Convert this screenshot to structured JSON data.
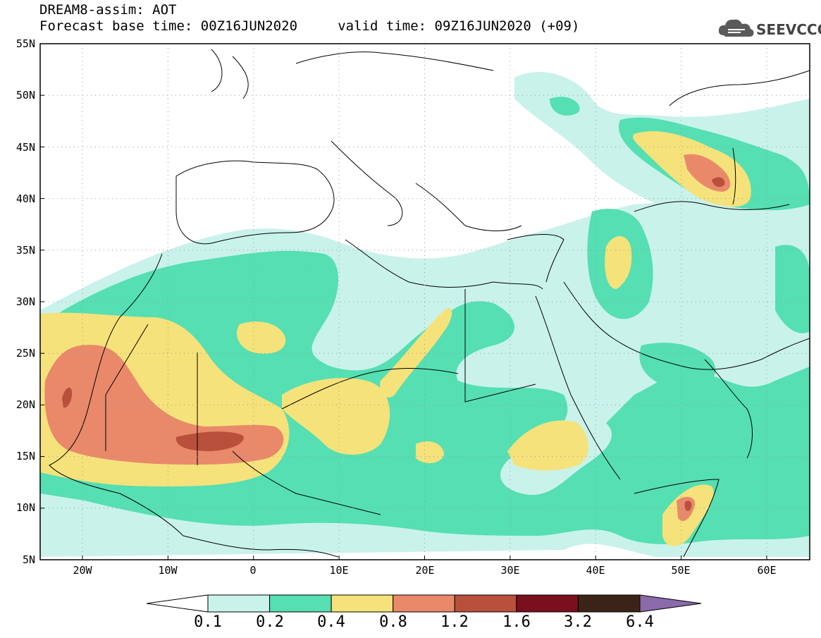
{
  "header": {
    "title": "DREAM8-assim: AOT",
    "subtitle": "Forecast base time: 00Z16JUN2020     valid time: 09Z16JUN2020 (+09)"
  },
  "logo": {
    "text": "SEEVCCC"
  },
  "map": {
    "lat_labels": [
      "55N",
      "50N",
      "45N",
      "40N",
      "35N",
      "30N",
      "25N",
      "20N",
      "15N",
      "10N",
      "5N"
    ],
    "lon_labels": [
      "20W",
      "10W",
      "0",
      "10E",
      "20E",
      "30E",
      "40E",
      "50E",
      "60E"
    ]
  },
  "colorbar": {
    "labels": [
      "0.1",
      "0.2",
      "0.4",
      "0.8",
      "1.2",
      "1.6",
      "3.2",
      "6.4"
    ],
    "colors": [
      "#c9f2eb",
      "#55dfb3",
      "#f6e27a",
      "#e9896a",
      "#b8503c",
      "#7a0f1e",
      "#3b2417",
      "#8a6aab"
    ]
  },
  "palette": {
    "c1": "#c9f2eb",
    "c2": "#55dfb3",
    "c3": "#f6e27a",
    "c4": "#e9896a",
    "c5": "#b8503c"
  }
}
